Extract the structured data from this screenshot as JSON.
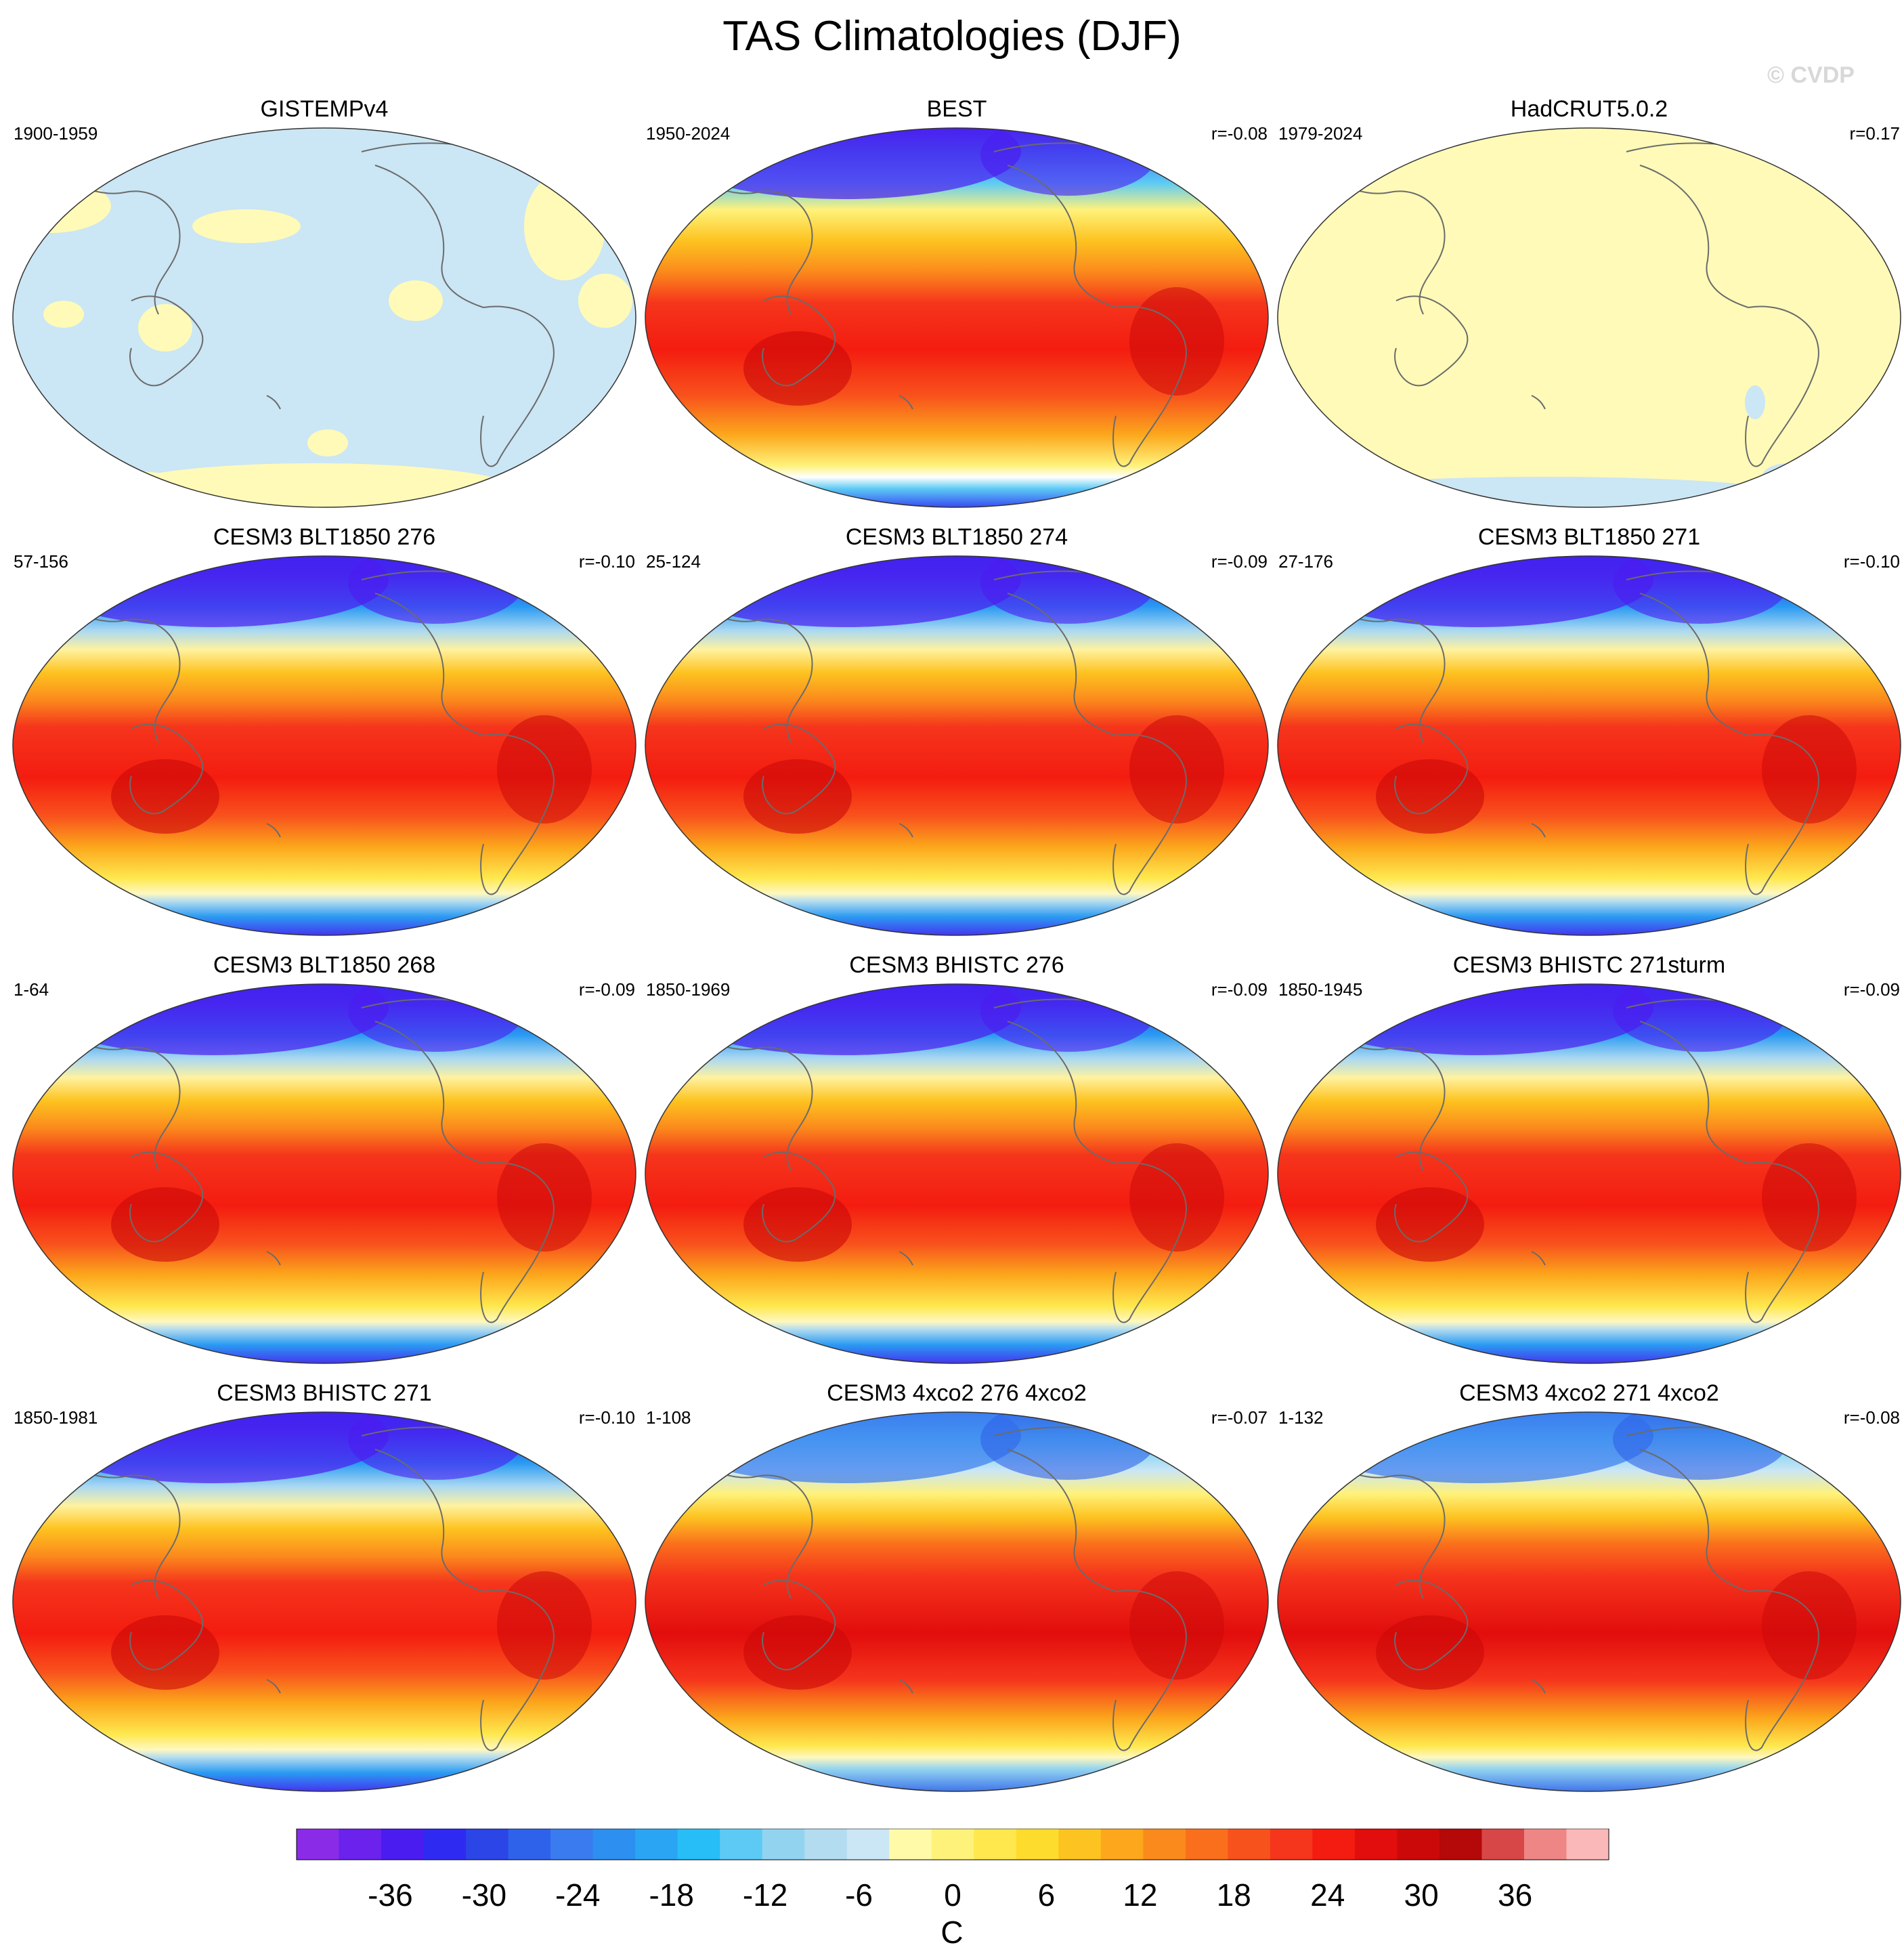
{
  "title": "TAS Climatologies (DJF)",
  "watermark": "© CVDP",
  "panels": [
    {
      "name": "GISTEMPv4",
      "period": "1900-1959",
      "corr": "",
      "style": "gistemp"
    },
    {
      "name": "BEST",
      "period": "1950-2024",
      "corr": "r=-0.08",
      "style": "obs"
    },
    {
      "name": "HadCRUT5.0.2",
      "period": "1979-2024",
      "corr": "r=0.17",
      "style": "hadcrut"
    },
    {
      "name": "CESM3 BLT1850 276",
      "period": "57-156",
      "corr": "r=-0.10",
      "style": "model"
    },
    {
      "name": "CESM3 BLT1850 274",
      "period": "25-124",
      "corr": "r=-0.09",
      "style": "model"
    },
    {
      "name": "CESM3 BLT1850 271",
      "period": "27-176",
      "corr": "r=-0.10",
      "style": "model"
    },
    {
      "name": "CESM3 BLT1850 268",
      "period": "1-64",
      "corr": "r=-0.09",
      "style": "model"
    },
    {
      "name": "CESM3 BHISTC 276",
      "period": "1850-1969",
      "corr": "r=-0.09",
      "style": "model"
    },
    {
      "name": "CESM3 BHISTC 271sturm",
      "period": "1850-1945",
      "corr": "r=-0.09",
      "style": "model"
    },
    {
      "name": "CESM3 BHISTC 271",
      "period": "1850-1981",
      "corr": "r=-0.10",
      "style": "model"
    },
    {
      "name": "CESM3 4xco2 276 4xco2",
      "period": "1-108",
      "corr": "r=-0.07",
      "style": "warm"
    },
    {
      "name": "CESM3 4xco2 271 4xco2",
      "period": "1-132",
      "corr": "r=-0.08",
      "style": "warm"
    }
  ],
  "chart_data": {
    "type": "heatmap",
    "projection": "Robinson (Pacific-centered)",
    "title": "TAS Climatologies (DJF)",
    "colorbar": {
      "label": "C",
      "min": -42,
      "max": 42,
      "step": 3,
      "ticks": [
        -36,
        -30,
        -24,
        -18,
        -12,
        -6,
        0,
        6,
        12,
        18,
        24,
        30,
        36
      ],
      "colors": [
        "#8a2be8",
        "#6a22ec",
        "#4b1cf0",
        "#2f2af2",
        "#2b45e6",
        "#2f62ea",
        "#3a7cef",
        "#2d8ff0",
        "#2aa5f3",
        "#27bdf6",
        "#5ccaf5",
        "#92d4f0",
        "#b3dcf0",
        "#cbe6f4",
        "#fffaa8",
        "#fff27a",
        "#fee84e",
        "#fedc2e",
        "#fdc320",
        "#fca71c",
        "#fb8a1c",
        "#fa6f1c",
        "#f8521c",
        "#f5351c",
        "#f41c10",
        "#e20d0d",
        "#cc0909",
        "#b50808",
        "#d84747",
        "#ee8686",
        "#fbb8b8"
      ]
    }
  }
}
